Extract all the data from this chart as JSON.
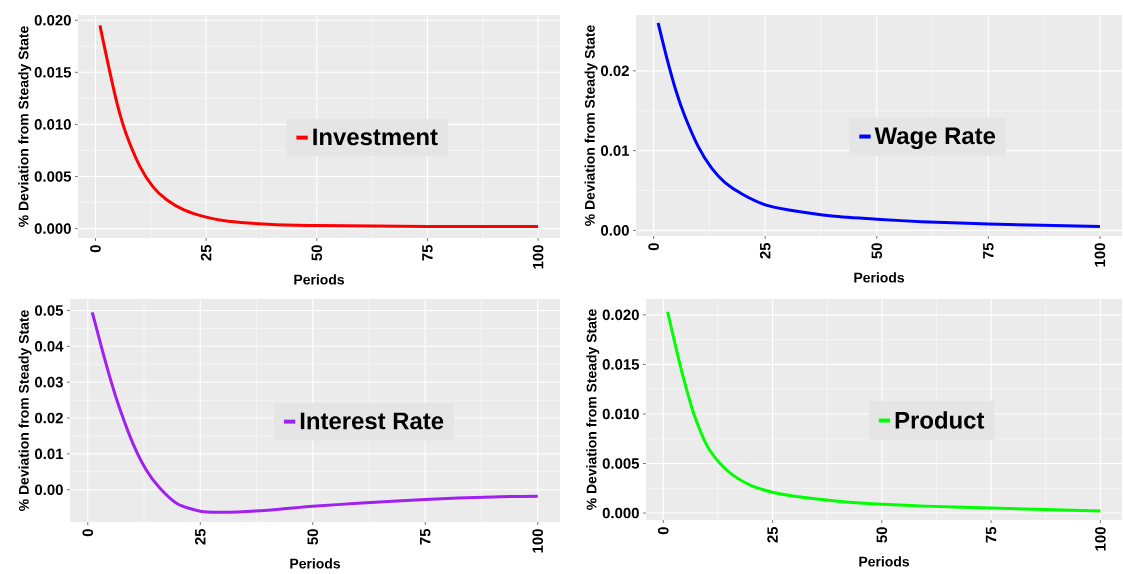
{
  "chart_data": [
    {
      "type": "line",
      "xlabel": "Periods",
      "ylabel": "% Deviation from Steady State",
      "x": [
        1,
        3,
        5,
        7,
        10,
        13,
        16,
        20,
        25,
        30,
        40,
        50,
        75,
        100
      ],
      "series": [
        {
          "name": "Investment",
          "color": "#ff0000",
          "values": [
            0.0195,
            0.0155,
            0.0118,
            0.009,
            0.006,
            0.004,
            0.0028,
            0.0018,
            0.0011,
            0.0007,
            0.0004,
            0.0003,
            0.0002,
            0.0002
          ]
        }
      ],
      "xlim": [
        -3.95,
        104.95
      ],
      "ylim": [
        -0.0009,
        0.0205
      ],
      "xticks": [
        0,
        25,
        50,
        75,
        100
      ],
      "yticks": [
        {
          "value": 0,
          "label": "0.000"
        },
        {
          "value": 0.005,
          "label": "0.005"
        },
        {
          "value": 0.01,
          "label": "0.010"
        },
        {
          "value": 0.015,
          "label": "0.015"
        },
        {
          "value": 0.02,
          "label": "0.020"
        }
      ],
      "grid": true,
      "legend": "center"
    },
    {
      "type": "line",
      "xlabel": "Periods",
      "ylabel": "% Deviation from Steady State",
      "x": [
        1,
        3,
        5,
        7,
        10,
        13,
        16,
        20,
        25,
        30,
        40,
        50,
        60,
        75,
        100
      ],
      "series": [
        {
          "name": "Wage Rate",
          "color": "#0000ff",
          "values": [
            0.026,
            0.0215,
            0.0175,
            0.0143,
            0.0105,
            0.0078,
            0.006,
            0.0045,
            0.0032,
            0.0026,
            0.0018,
            0.0014,
            0.0011,
            0.0008,
            0.0005
          ]
        }
      ],
      "xlim": [
        -3.95,
        104.95
      ],
      "ylim": [
        -0.0007,
        0.027
      ],
      "xticks": [
        0,
        25,
        50,
        75,
        100
      ],
      "yticks": [
        {
          "value": 0,
          "label": "0.00"
        },
        {
          "value": 0.01,
          "label": "0.01"
        },
        {
          "value": 0.02,
          "label": "0.02"
        }
      ],
      "grid": true,
      "legend": "center"
    },
    {
      "type": "line",
      "xlabel": "Periods",
      "ylabel": "% Deviation from Steady State",
      "x": [
        1,
        3,
        5,
        7,
        10,
        13,
        16,
        20,
        25,
        30,
        40,
        50,
        60,
        75,
        90,
        100
      ],
      "series": [
        {
          "name": "Interest Rate",
          "color": "#a020f0",
          "values": [
            0.0495,
            0.04,
            0.031,
            0.023,
            0.013,
            0.0055,
            0.0005,
            -0.004,
            -0.006,
            -0.0063,
            -0.0057,
            -0.0046,
            -0.0038,
            -0.0027,
            -0.002,
            -0.0018
          ]
        }
      ],
      "xlim": [
        -3.95,
        104.95
      ],
      "ylim": [
        -0.009,
        0.0532
      ],
      "xticks": [
        0,
        25,
        50,
        75,
        100
      ],
      "yticks": [
        {
          "value": 0,
          "label": "0.00"
        },
        {
          "value": 0.01,
          "label": "0.01"
        },
        {
          "value": 0.02,
          "label": "0.02"
        },
        {
          "value": 0.03,
          "label": "0.03"
        },
        {
          "value": 0.04,
          "label": "0.04"
        },
        {
          "value": 0.05,
          "label": "0.05"
        }
      ],
      "grid": true,
      "legend": "center"
    },
    {
      "type": "line",
      "xlabel": "Periods",
      "ylabel": "% Deviation from Steady State",
      "x": [
        1,
        3,
        5,
        7,
        10,
        13,
        16,
        20,
        25,
        30,
        40,
        50,
        60,
        75,
        100
      ],
      "series": [
        {
          "name": "Product",
          "color": "#00ff00",
          "values": [
            0.0203,
            0.0165,
            0.013,
            0.01,
            0.0068,
            0.005,
            0.0038,
            0.0028,
            0.0021,
            0.0017,
            0.0012,
            0.0009,
            0.0007,
            0.0005,
            0.0002
          ]
        }
      ],
      "xlim": [
        -3.95,
        104.95
      ],
      "ylim": [
        -0.0007,
        0.0216
      ],
      "xticks": [
        0,
        25,
        50,
        75,
        100
      ],
      "yticks": [
        {
          "value": 0,
          "label": "0.000"
        },
        {
          "value": 0.005,
          "label": "0.005"
        },
        {
          "value": 0.01,
          "label": "0.010"
        },
        {
          "value": 0.015,
          "label": "0.015"
        },
        {
          "value": 0.02,
          "label": "0.020"
        }
      ],
      "grid": true,
      "legend": "center"
    }
  ]
}
